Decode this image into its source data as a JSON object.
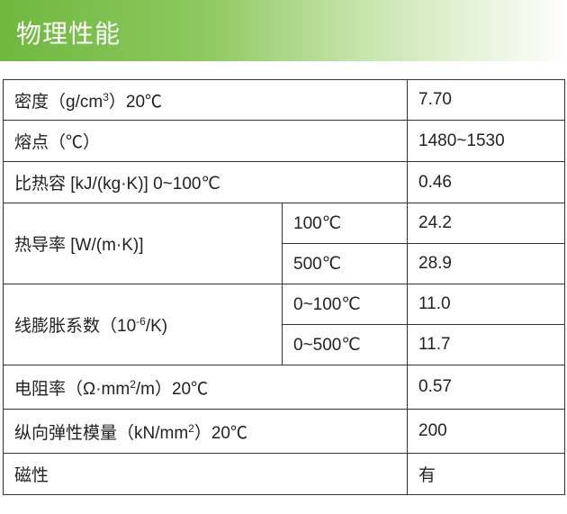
{
  "header": {
    "title": "物理性能"
  },
  "table": {
    "rows": [
      {
        "label": {
          "text": "密度（g/cm",
          "sup": "3",
          "tail": "）20℃"
        },
        "value": "7.70"
      },
      {
        "label": "熔点（℃）",
        "value": "1480~1530"
      },
      {
        "label": "比热容 [kJ/(kg·K)]  0~100℃",
        "value": "0.46"
      },
      {
        "label": "热导率 [W/(m·K)]",
        "sub": [
          {
            "condition": "100℃",
            "value": "24.2"
          },
          {
            "condition": "500℃",
            "value": "28.9"
          }
        ]
      },
      {
        "label": {
          "text": "线膨胀系数（10",
          "sup": "-6",
          "tail": "/K)"
        },
        "sub": [
          {
            "condition": "0~100℃",
            "value": "11.0"
          },
          {
            "condition": "0~500℃",
            "value": "11.7"
          }
        ]
      },
      {
        "label": {
          "text": "电阻率（Ω·mm",
          "sup": "2",
          "tail": "/m）20℃"
        },
        "value": "0.57"
      },
      {
        "label": {
          "text": "纵向弹性模量（kN/mm",
          "sup": "2",
          "tail": "）20℃"
        },
        "value": "200"
      },
      {
        "label": "磁性",
        "value": "有"
      }
    ]
  }
}
